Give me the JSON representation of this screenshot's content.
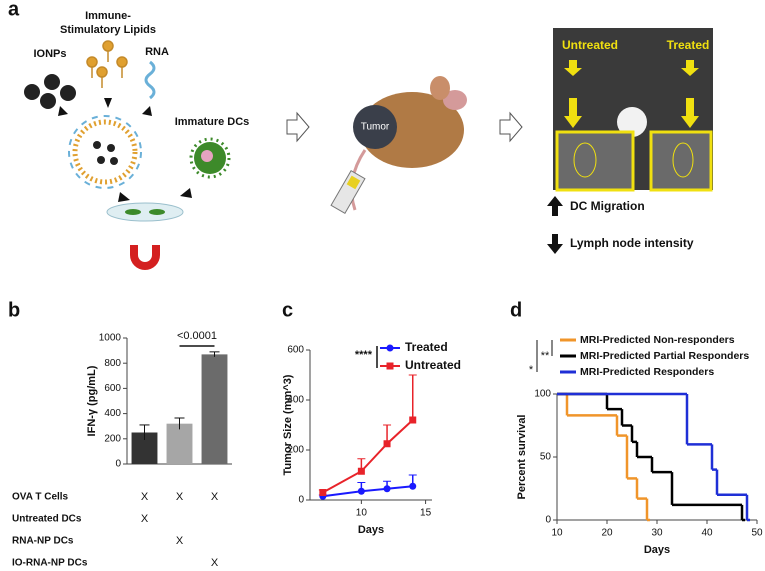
{
  "panel_a": {
    "label": "a",
    "lipids": [
      "Immune-",
      "Stimulatory Lipids"
    ],
    "ionps": "IONPs",
    "rna": "RNA",
    "dcs": "Immature DCs",
    "tumor": "Tumor",
    "untreated": "Untreated",
    "treated": "Treated",
    "up": "DC Migration",
    "down": "Lymph node intensity"
  },
  "chart_data": [
    {
      "panel": "b",
      "type": "bar",
      "ylabel": "IFN-γ (pg/mL)",
      "values": [
        250,
        320,
        870
      ],
      "errors": [
        60,
        45,
        20
      ],
      "colors": [
        "#333333",
        "#a6a6a6",
        "#6b6b6b"
      ],
      "ylim": [
        0,
        1000
      ],
      "yticks": [
        0,
        200,
        400,
        600,
        800,
        1000
      ],
      "annotation": "<0.0001",
      "conditions": [
        {
          "label": "OVA T Cells",
          "marks": [
            "X",
            "X",
            "X"
          ]
        },
        {
          "label": "Untreated DCs",
          "marks": [
            "X",
            null,
            null
          ]
        },
        {
          "label": "RNA-NP DCs",
          "marks": [
            null,
            "X",
            null
          ]
        },
        {
          "label": "IO-RNA-NP DCs",
          "marks": [
            null,
            null,
            "X"
          ]
        }
      ]
    },
    {
      "panel": "c",
      "type": "line",
      "xlabel": "Days",
      "ylabel": "Tumor Size (mm^3)",
      "x": [
        7,
        10,
        12,
        14
      ],
      "series": [
        {
          "name": "Treated",
          "color": "#1a1aff",
          "values": [
            15,
            35,
            45,
            55
          ],
          "errors": [
            5,
            35,
            30,
            45
          ]
        },
        {
          "name": "Untreated",
          "color": "#e8232a",
          "values": [
            30,
            115,
            225,
            320
          ],
          "errors": [
            10,
            50,
            75,
            180
          ]
        }
      ],
      "xlim": [
        6,
        15.5
      ],
      "xticks": [
        10,
        15
      ],
      "ylim": [
        0,
        600
      ],
      "yticks": [
        0,
        200,
        400,
        600
      ],
      "significance": "****"
    },
    {
      "panel": "d",
      "type": "step",
      "xlabel": "Days",
      "ylabel": "Percent survival",
      "series": [
        {
          "name": "MRI-Predicted Non-responders",
          "color": "#f0952a",
          "x": [
            10,
            12,
            22,
            24,
            26,
            28
          ],
          "values": [
            100,
            83,
            67,
            33,
            17,
            0
          ]
        },
        {
          "name": "MRI-Predicted Partial Responders",
          "color": "#000000",
          "x": [
            10,
            20,
            23,
            25,
            26,
            29,
            33,
            47
          ],
          "values": [
            100,
            88,
            75,
            62,
            50,
            38,
            12,
            0
          ]
        },
        {
          "name": "MRI-Predicted Responders",
          "color": "#1f2fd6",
          "x": [
            10,
            36,
            41,
            42,
            48
          ],
          "values": [
            100,
            60,
            40,
            20,
            0
          ]
        }
      ],
      "xlim": [
        10,
        50
      ],
      "xticks": [
        10,
        20,
        30,
        40,
        50
      ],
      "ylim": [
        0,
        100
      ],
      "yticks": [
        0,
        50,
        100
      ],
      "significance": [
        "*",
        "**"
      ]
    }
  ]
}
